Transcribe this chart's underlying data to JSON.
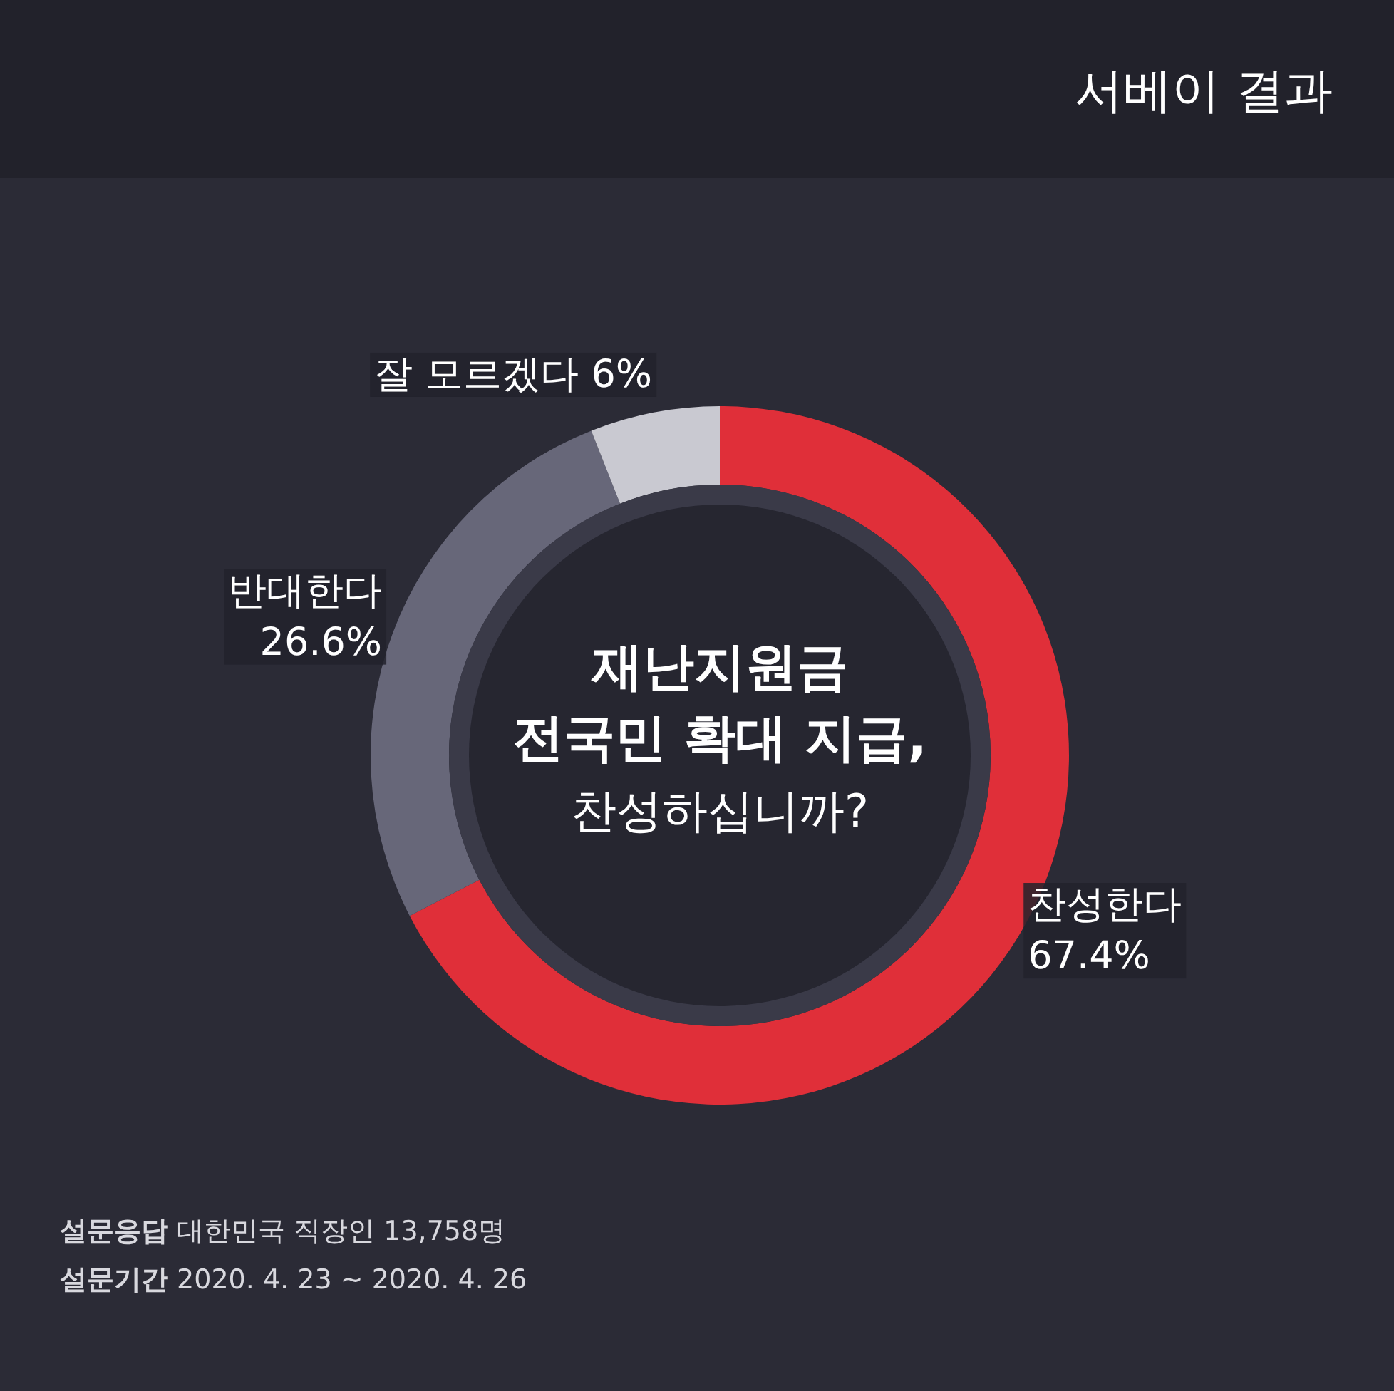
{
  "chart_data": {
    "type": "donut",
    "title": "재난지원금\n전국민 확대 지급,",
    "subtitle": "찬성하십니까?",
    "categories": [
      "찬성한다",
      "반대한다",
      "잘 모르겠다"
    ],
    "values": [
      67.4,
      26.6,
      6
    ],
    "value_labels": [
      "67.4%",
      "26.6%",
      "6%"
    ],
    "colors": [
      "#e02f39",
      "#676779",
      "#c9c9d1"
    ],
    "annotations": [
      "서베이 결과",
      "설문응답 대한민국 직장인 13,758명",
      "설문기간 2020. 4. 23 ~ 2020. 4. 26"
    ]
  }
}
